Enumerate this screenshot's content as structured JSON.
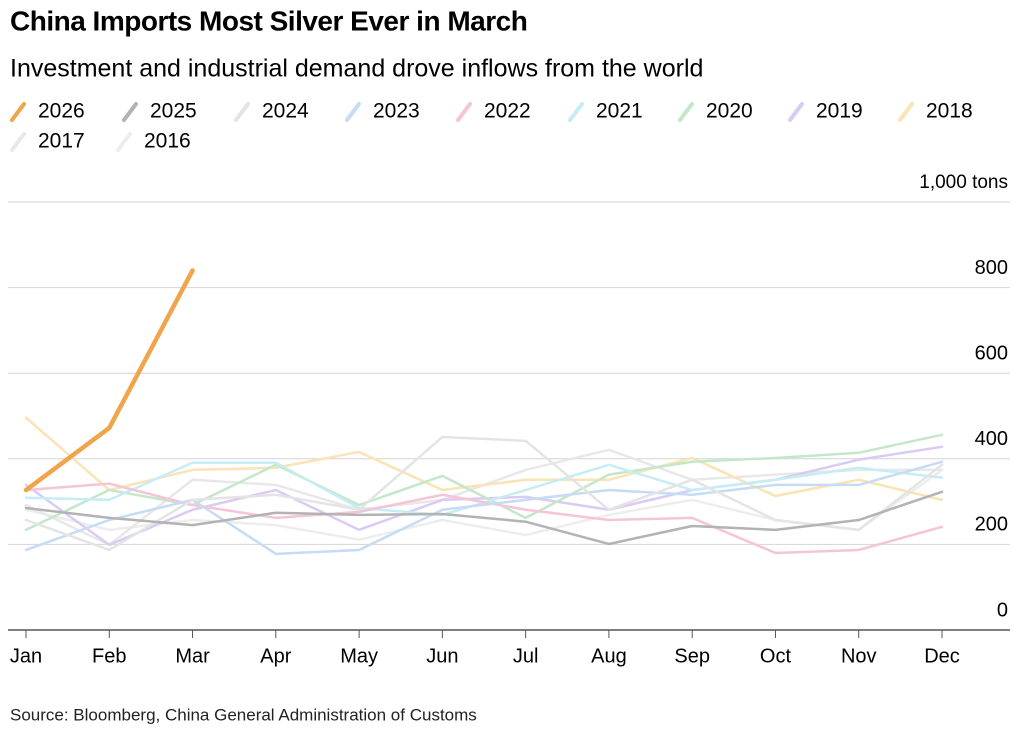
{
  "chart_data": {
    "type": "line",
    "title": "China Imports Most Silver Ever in March",
    "subtitle": "Investment and industrial demand drove inflows from the world",
    "source": "Source: Bloomberg, China General Administration of Customs",
    "categories": [
      "Jan",
      "Feb",
      "Mar",
      "Apr",
      "May",
      "Jun",
      "Jul",
      "Aug",
      "Sep",
      "Oct",
      "Nov",
      "Dec"
    ],
    "ylim": [
      0,
      1000
    ],
    "yticks": [
      0,
      200,
      400,
      600,
      800,
      {
        "value": 1000,
        "label": "1,000 tons"
      }
    ],
    "grid": true,
    "series": [
      {
        "name": "2026",
        "color": "#f0a54c",
        "values": [
          327,
          472,
          840,
          null,
          null,
          null,
          null,
          null,
          null,
          null,
          null,
          null
        ]
      },
      {
        "name": "2025",
        "color": "#b3b3b3",
        "values": [
          285,
          262,
          245,
          274,
          269,
          271,
          253,
          201,
          243,
          234,
          257,
          323
        ]
      },
      {
        "name": "2024",
        "color": "#e4e4e4",
        "values": [
          257,
          187,
          304,
          316,
          281,
          451,
          442,
          281,
          351,
          257,
          234,
          386
        ]
      },
      {
        "name": "2023",
        "color": "#c6dbf4",
        "values": [
          187,
          257,
          304,
          178,
          187,
          281,
          304,
          327,
          316,
          339,
          339,
          393
        ]
      },
      {
        "name": "2022",
        "color": "#f5c5d7",
        "values": [
          327,
          342,
          292,
          262,
          276,
          316,
          281,
          257,
          262,
          180,
          187,
          241
        ]
      },
      {
        "name": "2021",
        "color": "#c6edf5",
        "values": [
          309,
          304,
          391,
          391,
          285,
          269,
          327,
          386,
          327,
          351,
          379,
          356
        ]
      },
      {
        "name": "2020",
        "color": "#c4e7ca",
        "values": [
          234,
          327,
          292,
          386,
          292,
          360,
          262,
          363,
          393,
          402,
          414,
          456
        ]
      },
      {
        "name": "2019",
        "color": "#dbcaf4",
        "values": [
          339,
          199,
          281,
          327,
          234,
          304,
          311,
          281,
          327,
          351,
          398,
          428
        ]
      },
      {
        "name": "2018",
        "color": "#fae3b5",
        "values": [
          496,
          327,
          374,
          379,
          416,
          327,
          351,
          351,
          402,
          313,
          351,
          304
        ]
      },
      {
        "name": "2017",
        "color": "#e8e8e8",
        "values": [
          292,
          199,
          351,
          339,
          281,
          304,
          374,
          421,
          351,
          363,
          374,
          374
        ]
      },
      {
        "name": "2016",
        "color": "#ededed",
        "values": [
          281,
          234,
          257,
          245,
          211,
          257,
          222,
          269,
          304,
          257,
          234,
          374
        ]
      }
    ]
  }
}
